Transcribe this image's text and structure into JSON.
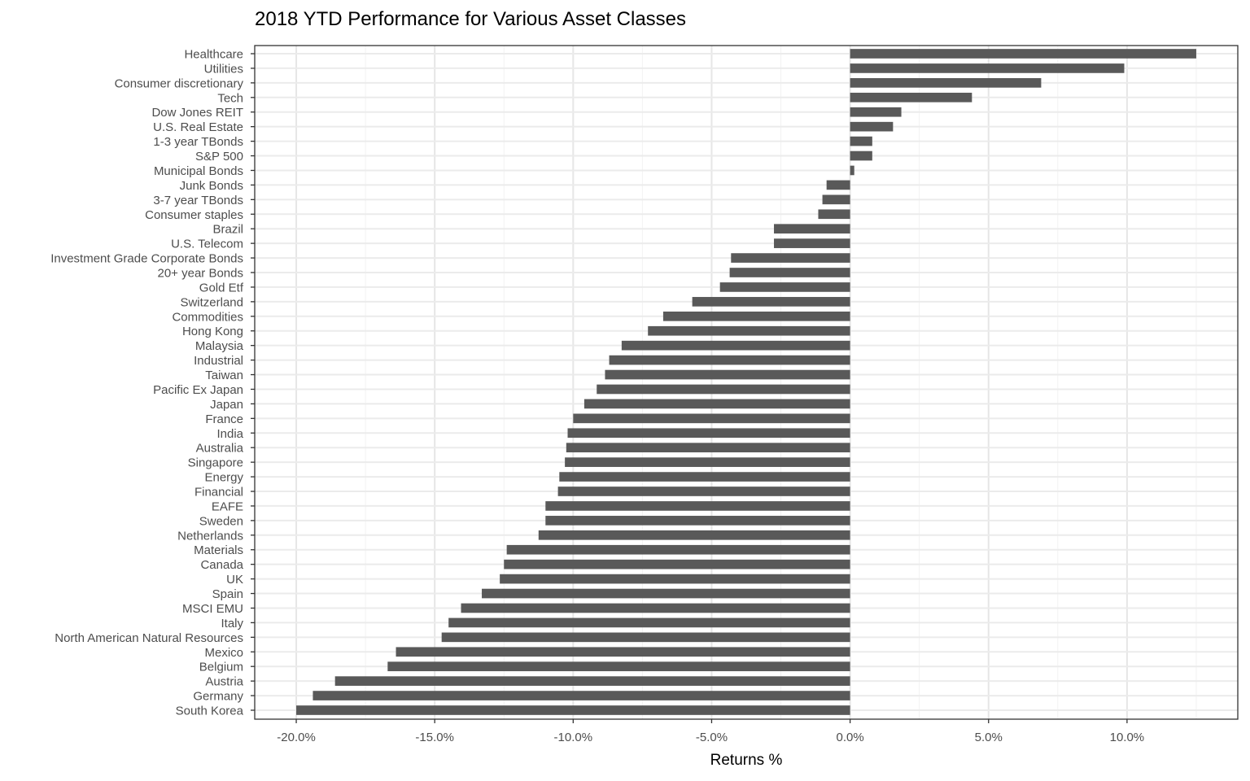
{
  "chart_data": {
    "type": "bar",
    "orientation": "horizontal",
    "title": "2018 YTD Performance for Various Asset Classes",
    "xlabel": "Returns %",
    "ylabel": "",
    "xlim": [
      -21.5,
      14.0
    ],
    "x_ticks": [
      -20,
      -15,
      -10,
      -5,
      0,
      5,
      10
    ],
    "x_tick_labels": [
      "-20.0%",
      "-15.0%",
      "-10.0%",
      "-5.0%",
      "0.0%",
      "5.0%",
      "10.0%"
    ],
    "grid": true,
    "bar_color": "#595959",
    "categories": [
      "Healthcare",
      "Utilities",
      "Consumer discretionary",
      "Tech",
      "Dow Jones REIT",
      "U.S. Real Estate",
      "1-3 year TBonds",
      "S&P 500",
      "Municipal Bonds",
      "Junk Bonds",
      "3-7 year TBonds",
      "Consumer staples",
      "Brazil",
      "U.S. Telecom",
      "Investment Grade Corporate Bonds",
      "20+ year Bonds",
      "Gold Etf",
      "Switzerland",
      "Commodities",
      "Hong Kong",
      "Malaysia",
      "Industrial",
      "Taiwan",
      "Pacific Ex Japan",
      "Japan",
      "France",
      "India",
      "Australia",
      "Singapore",
      "Energy",
      "Financial",
      "EAFE",
      "Sweden",
      "Netherlands",
      "Materials",
      "Canada",
      "UK",
      "Spain",
      "MSCI EMU",
      "Italy",
      "North American Natural Resources",
      "Mexico",
      "Belgium",
      "Austria",
      "Germany",
      "South Korea"
    ],
    "values": [
      12.5,
      9.9,
      6.9,
      4.4,
      1.85,
      1.55,
      0.8,
      0.8,
      0.15,
      -0.85,
      -1.0,
      -1.15,
      -2.75,
      -2.75,
      -4.3,
      -4.35,
      -4.7,
      -5.7,
      -6.75,
      -7.3,
      -8.25,
      -8.7,
      -8.85,
      -9.15,
      -9.6,
      -10.0,
      -10.2,
      -10.25,
      -10.3,
      -10.5,
      -10.55,
      -11.0,
      -11.0,
      -11.25,
      -12.4,
      -12.5,
      -12.65,
      -13.3,
      -14.05,
      -14.5,
      -14.75,
      -16.4,
      -16.7,
      -18.6,
      -19.4,
      -20.0
    ]
  }
}
